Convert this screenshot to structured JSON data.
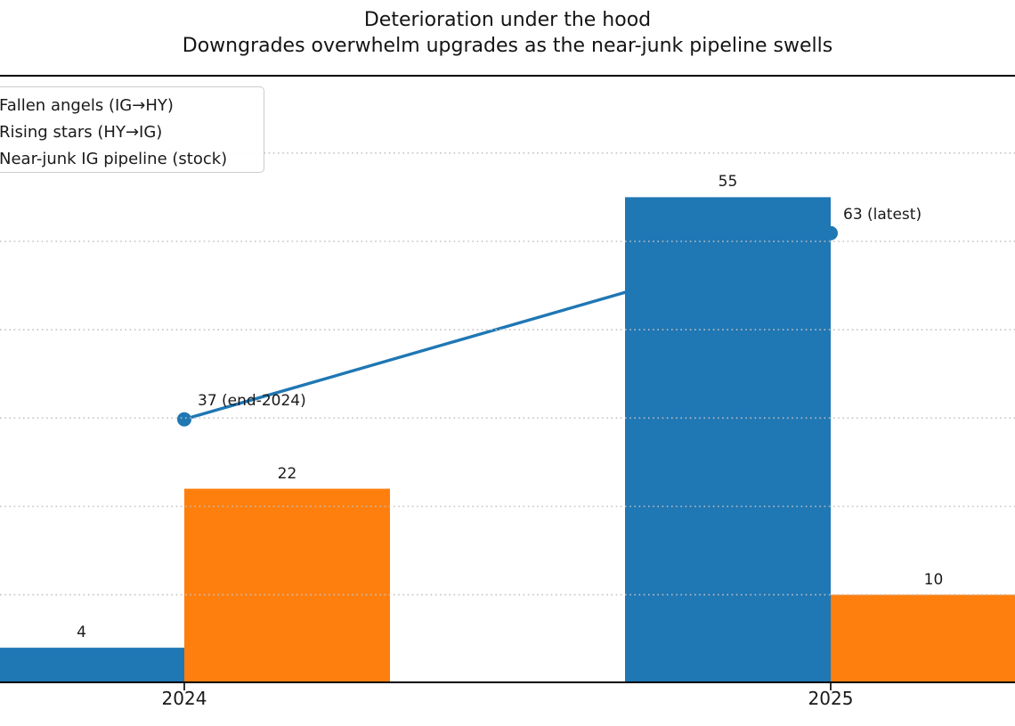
{
  "title": "Deterioration under the hood",
  "subtitle": "Downgrades overwhelm upgrades as the near-junk pipeline swells",
  "chart_data": {
    "type": "bar",
    "subtype": "grouped bars with overlaid line on secondary axis",
    "categories": [
      "2024",
      "2025"
    ],
    "series": [
      {
        "name": "Fallen angels (IG→HY)",
        "type": "bar",
        "color": "#1f77b4",
        "values": [
          4,
          55
        ]
      },
      {
        "name": "Rising stars (HY→IG)",
        "type": "bar",
        "color": "#ff7f0e",
        "values": [
          22,
          10
        ]
      },
      {
        "name": "Near-junk IG pipeline (stock)",
        "type": "line",
        "color": "#1f77b4",
        "values": [
          37,
          63
        ],
        "annotations": [
          "37 (end-2024)",
          "63 (latest)"
        ]
      }
    ],
    "bar_value_labels": [
      4,
      22,
      55,
      10
    ],
    "ylabel": "",
    "xlabel": "",
    "ylim_left": [
      0,
      68.75
    ],
    "ylim_right": [
      0,
      85
    ],
    "grid": "horizontal dotted gridlines every 10 units of left axis",
    "legend_position": "upper left (swatches cropped off left edge)",
    "colors": {
      "bar_blue": "#1f77b4",
      "bar_orange": "#ff7f0e",
      "line_blue": "#1f77b4",
      "grid_gray": "#c2c2c2",
      "axis_black": "#000000"
    }
  }
}
